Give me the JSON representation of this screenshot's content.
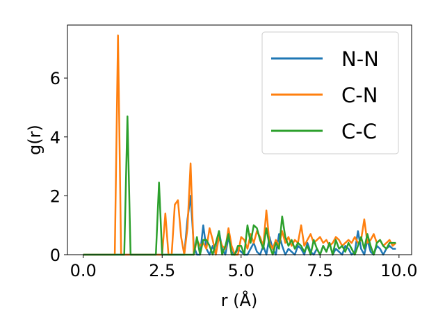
{
  "chart_data": {
    "type": "line",
    "xlabel": "r (Å)",
    "ylabel": "g(r)",
    "xlim": [
      -0.5,
      10.4
    ],
    "ylim": [
      0,
      7.8
    ],
    "xticks": [
      0.0,
      2.5,
      5.0,
      7.5,
      10.0
    ],
    "xtick_labels": [
      "0.0",
      "2.5",
      "5.0",
      "7.5",
      "10.0"
    ],
    "yticks": [
      0,
      2,
      4,
      6
    ],
    "ytick_labels": [
      "0",
      "2",
      "4",
      "6"
    ],
    "grid": false,
    "legend_position": "top-right",
    "series": [
      {
        "name": "N-N",
        "color": "#1f77b4",
        "x": [
          0.0,
          3.1,
          3.2,
          3.3,
          3.4,
          3.5,
          3.6,
          3.7,
          3.8,
          3.9,
          4.0,
          4.1,
          4.2,
          4.3,
          4.4,
          4.5,
          4.6,
          4.7,
          4.8,
          4.9,
          5.0,
          5.1,
          5.2,
          5.3,
          5.4,
          5.5,
          5.6,
          5.7,
          5.8,
          5.9,
          6.0,
          6.1,
          6.2,
          6.3,
          6.4,
          6.5,
          6.6,
          6.7,
          6.8,
          6.9,
          7.0,
          7.1,
          7.2,
          7.3,
          7.4,
          7.5,
          7.6,
          7.7,
          7.8,
          7.9,
          8.0,
          8.1,
          8.2,
          8.3,
          8.4,
          8.5,
          8.6,
          8.7,
          8.8,
          8.9,
          9.0,
          9.1,
          9.2,
          9.3,
          9.4,
          9.5,
          9.6,
          9.7,
          9.8,
          9.9
        ],
        "y": [
          0.0,
          0.0,
          0.0,
          1.2,
          2.0,
          0.3,
          0.0,
          0.0,
          1.0,
          0.2,
          0.0,
          0.3,
          0.0,
          0.8,
          0.2,
          0.0,
          0.6,
          0.1,
          0.0,
          0.2,
          0.1,
          0.0,
          0.0,
          0.2,
          0.4,
          0.1,
          0.0,
          0.3,
          0.0,
          0.6,
          0.2,
          0.0,
          0.7,
          0.3,
          0.0,
          0.2,
          0.1,
          0.0,
          0.3,
          0.2,
          0.0,
          0.4,
          0.1,
          0.0,
          0.2,
          0.0,
          0.3,
          0.1,
          0.4,
          0.0,
          0.2,
          0.1,
          0.0,
          0.3,
          0.2,
          0.0,
          0.1,
          0.8,
          0.2,
          0.0,
          0.5,
          0.1,
          0.0,
          0.3,
          0.2,
          0.0,
          0.2,
          0.3,
          0.2,
          0.2
        ]
      },
      {
        "name": "C-N",
        "color": "#ff7f0e",
        "x": [
          0.0,
          0.9,
          1.0,
          1.1,
          1.2,
          1.3,
          2.4,
          2.5,
          2.6,
          2.7,
          2.8,
          2.9,
          3.0,
          3.1,
          3.2,
          3.3,
          3.4,
          3.5,
          3.6,
          3.7,
          3.8,
          3.9,
          4.0,
          4.1,
          4.2,
          4.3,
          4.4,
          4.5,
          4.6,
          4.7,
          4.8,
          4.9,
          5.0,
          5.1,
          5.2,
          5.3,
          5.4,
          5.5,
          5.6,
          5.7,
          5.8,
          5.9,
          6.0,
          6.1,
          6.2,
          6.3,
          6.4,
          6.5,
          6.6,
          6.7,
          6.8,
          6.9,
          7.0,
          7.1,
          7.2,
          7.3,
          7.4,
          7.5,
          7.6,
          7.7,
          7.8,
          7.9,
          8.0,
          8.1,
          8.2,
          8.3,
          8.4,
          8.5,
          8.6,
          8.7,
          8.8,
          8.9,
          9.0,
          9.1,
          9.2,
          9.3,
          9.4,
          9.5,
          9.6,
          9.7,
          9.8,
          9.9
        ],
        "y": [
          0.0,
          0.0,
          0.0,
          7.45,
          0.0,
          0.0,
          0.0,
          0.0,
          1.4,
          0.0,
          0.0,
          1.7,
          1.85,
          0.6,
          0.0,
          0.9,
          3.1,
          0.0,
          0.5,
          0.3,
          0.4,
          0.2,
          0.9,
          0.5,
          0.0,
          0.6,
          0.3,
          0.2,
          0.9,
          0.3,
          0.0,
          0.0,
          0.6,
          0.5,
          0.2,
          0.7,
          0.4,
          0.8,
          0.6,
          0.3,
          1.5,
          0.4,
          0.2,
          0.5,
          0.3,
          0.8,
          0.4,
          0.6,
          0.3,
          0.5,
          0.4,
          1.0,
          0.3,
          0.5,
          0.7,
          0.4,
          0.5,
          0.6,
          0.4,
          0.5,
          0.3,
          0.4,
          0.6,
          0.5,
          0.3,
          0.4,
          0.5,
          0.4,
          0.6,
          0.4,
          0.5,
          1.2,
          0.4,
          0.5,
          0.7,
          0.4,
          0.5,
          0.3,
          0.4,
          0.5,
          0.3,
          0.4
        ]
      },
      {
        "name": "C-C",
        "color": "#2ca02c",
        "x": [
          0.0,
          1.3,
          1.4,
          1.5,
          2.3,
          2.4,
          2.5,
          2.6,
          3.5,
          3.6,
          3.7,
          3.8,
          3.9,
          4.0,
          4.1,
          4.2,
          4.3,
          4.4,
          4.5,
          4.6,
          4.7,
          4.8,
          4.9,
          5.0,
          5.1,
          5.2,
          5.3,
          5.4,
          5.5,
          5.6,
          5.7,
          5.8,
          5.9,
          6.0,
          6.1,
          6.2,
          6.3,
          6.4,
          6.5,
          6.6,
          6.7,
          6.8,
          6.9,
          7.0,
          7.1,
          7.2,
          7.3,
          7.4,
          7.5,
          7.6,
          7.7,
          7.8,
          7.9,
          8.0,
          8.1,
          8.2,
          8.3,
          8.4,
          8.5,
          8.6,
          8.7,
          8.8,
          8.9,
          9.0,
          9.1,
          9.2,
          9.3,
          9.4,
          9.5,
          9.6,
          9.7,
          9.8,
          9.9
        ],
        "y": [
          0.0,
          0.0,
          4.7,
          0.0,
          0.0,
          2.45,
          0.0,
          0.0,
          0.0,
          0.6,
          0.0,
          0.5,
          0.5,
          0.3,
          0.0,
          0.4,
          0.8,
          0.0,
          0.3,
          0.7,
          0.0,
          0.0,
          0.3,
          0.3,
          0.0,
          1.0,
          0.4,
          1.0,
          0.9,
          0.5,
          0.2,
          0.9,
          0.3,
          0.0,
          0.4,
          0.2,
          1.3,
          0.6,
          0.3,
          0.5,
          0.2,
          0.4,
          0.3,
          0.1,
          0.3,
          0.0,
          0.5,
          0.2,
          0.0,
          0.3,
          0.1,
          0.4,
          0.0,
          0.5,
          0.2,
          0.3,
          0.1,
          0.4,
          0.2,
          0.0,
          0.3,
          0.6,
          0.2,
          0.7,
          0.3,
          0.0,
          0.4,
          0.5,
          0.3,
          0.2,
          0.4,
          0.4,
          0.4
        ]
      }
    ]
  }
}
